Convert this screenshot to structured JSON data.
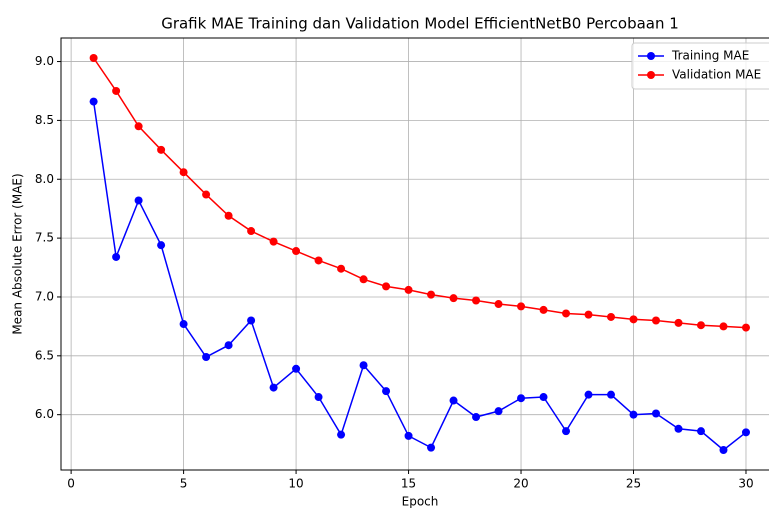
{
  "chart_data": {
    "type": "line",
    "title": "Grafik MAE Training dan Validation Model EfficientNetB0 Percobaan 1",
    "xlabel": "Epoch",
    "ylabel": "Mean Absolute Error (MAE)",
    "x": [
      1,
      2,
      3,
      4,
      5,
      6,
      7,
      8,
      9,
      10,
      11,
      12,
      13,
      14,
      15,
      16,
      17,
      18,
      19,
      20,
      21,
      22,
      23,
      24,
      25,
      26,
      27,
      28,
      29,
      30
    ],
    "series": [
      {
        "name": "Training MAE",
        "color": "#0000ff",
        "values": [
          8.66,
          7.34,
          7.82,
          7.44,
          6.77,
          6.49,
          6.59,
          6.8,
          6.23,
          6.39,
          6.15,
          5.83,
          6.42,
          6.2,
          5.82,
          5.72,
          6.12,
          5.98,
          6.03,
          6.14,
          6.15,
          5.86,
          6.17,
          6.17,
          6.0,
          6.01,
          5.88,
          5.86,
          5.7,
          5.85
        ]
      },
      {
        "name": "Validation MAE",
        "color": "#ff0000",
        "values": [
          9.03,
          8.75,
          8.45,
          8.25,
          8.06,
          7.87,
          7.69,
          7.56,
          7.47,
          7.39,
          7.31,
          7.24,
          7.15,
          7.09,
          7.06,
          7.02,
          6.99,
          6.97,
          6.94,
          6.92,
          6.89,
          6.86,
          6.85,
          6.83,
          6.81,
          6.8,
          6.78,
          6.76,
          6.75,
          6.74
        ]
      }
    ],
    "xlim": [
      -0.45,
      31.45
    ],
    "xticks": [
      0,
      5,
      10,
      15,
      20,
      25,
      30
    ],
    "ylim": [
      5.53,
      9.2
    ],
    "yticks": [
      {
        "value": 6,
        "label": "6.0"
      },
      {
        "value": 6.5,
        "label": "6.5"
      },
      {
        "value": 7,
        "label": "7.0"
      },
      {
        "value": 7.5,
        "label": "7.5"
      },
      {
        "value": 8,
        "label": "8.0"
      },
      {
        "value": 8.5,
        "label": "8.5"
      },
      {
        "value": 9,
        "label": "9.0"
      }
    ],
    "grid": true,
    "legend": "upper right"
  }
}
